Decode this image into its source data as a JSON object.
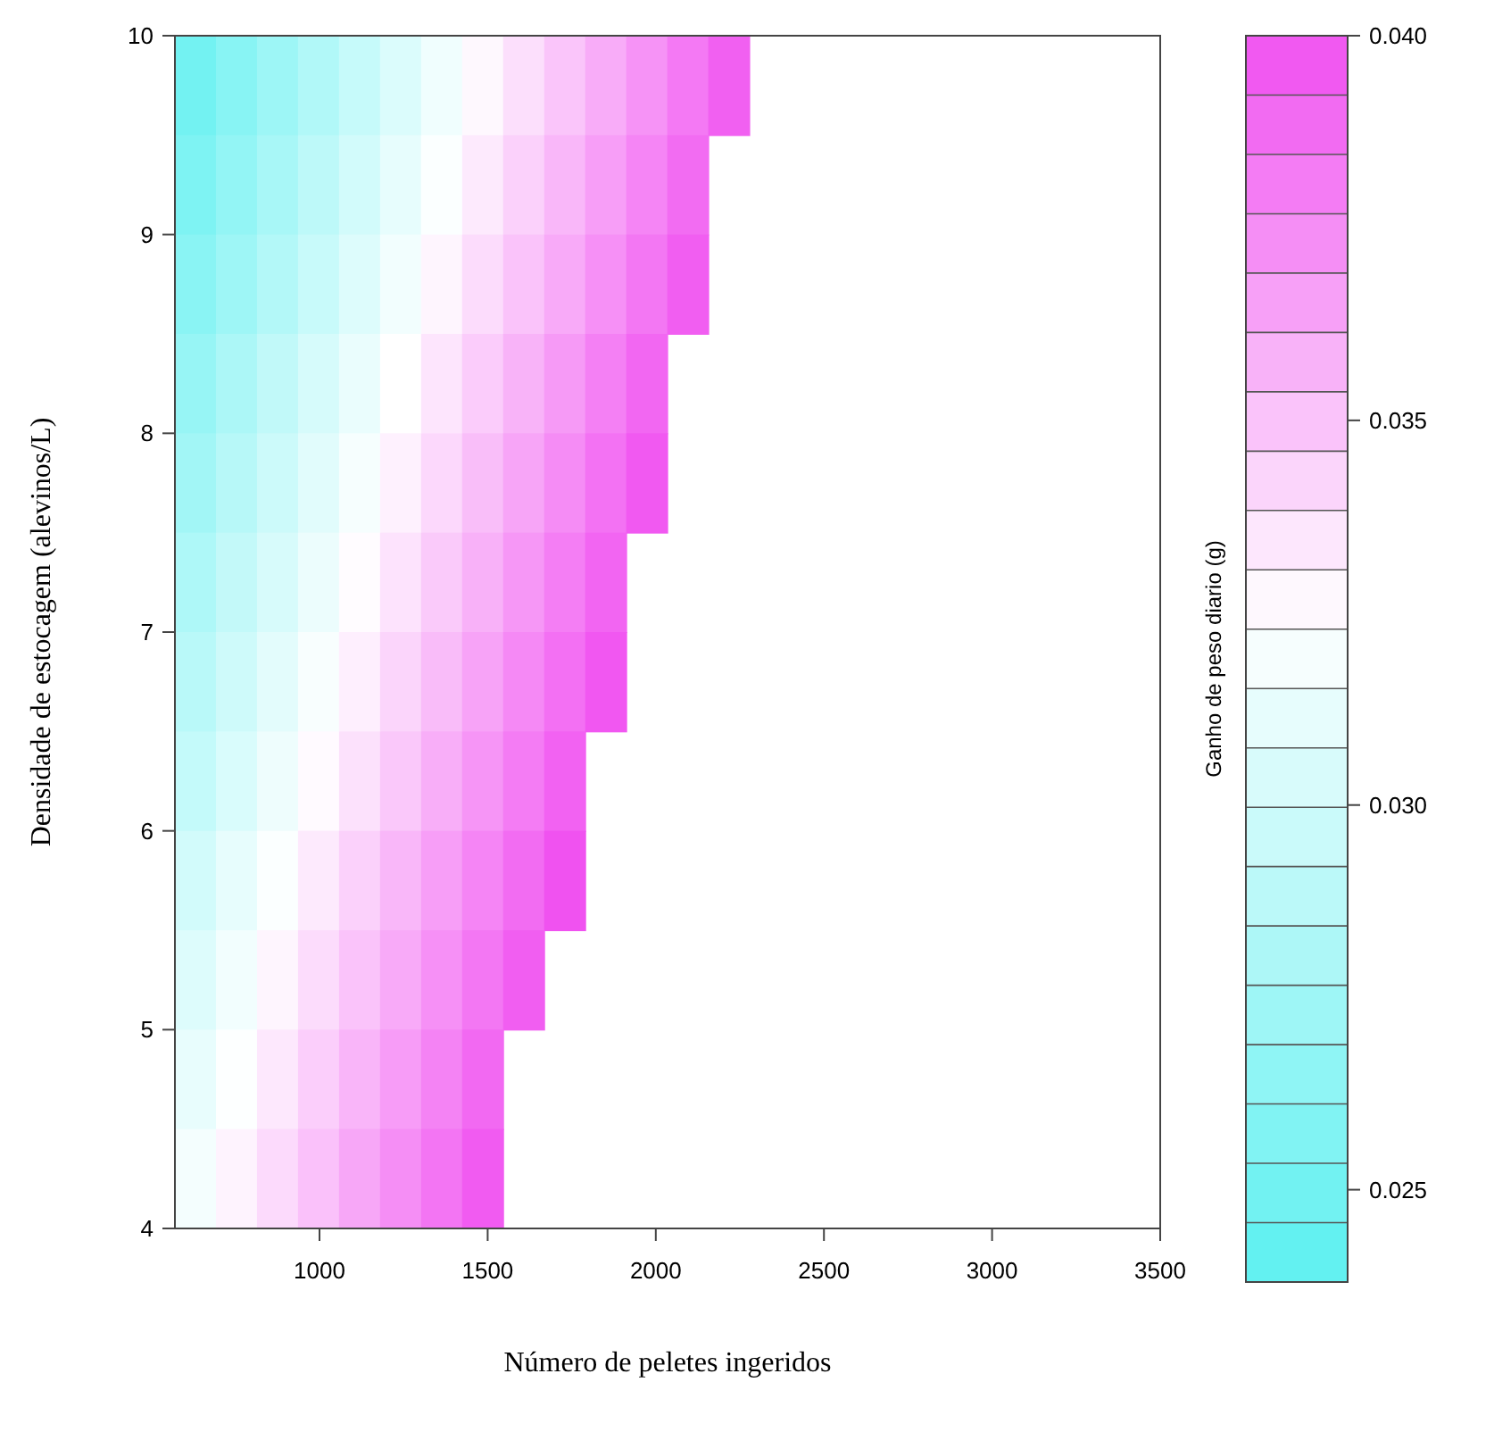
{
  "chart_data": {
    "type": "heatmap",
    "xlabel": "Número de peletes ingeridos",
    "ylabel": "Densidade de estocagem (alevinos/L)",
    "clabel": "Ganho de peso diario (g)",
    "x": [
      631,
      753,
      875,
      997,
      1119,
      1241,
      1363,
      1485,
      1607,
      1729,
      1851,
      1973,
      2095,
      2217
    ],
    "y": [
      9.75,
      9.25,
      8.75,
      8.25,
      7.75,
      7.25,
      6.75,
      6.25,
      5.75,
      5.25,
      4.75,
      4.25
    ],
    "xlim": [
      570,
      3500
    ],
    "xticks": [
      1000,
      1500,
      2000,
      2500,
      3000,
      3500
    ],
    "ylim": [
      4,
      10
    ],
    "yticks": [
      4,
      5,
      6,
      7,
      8,
      9,
      10
    ],
    "clim": [
      0.0238,
      0.04
    ],
    "cticks": [
      {
        "value": 0.025,
        "label": "0.025"
      },
      {
        "value": 0.03,
        "label": "0.030"
      },
      {
        "value": 0.035,
        "label": "0.035"
      },
      {
        "value": 0.04,
        "label": "0.040"
      }
    ],
    "cells": [
      [
        0.025,
        0.0261,
        0.0272,
        0.0283,
        0.0294,
        0.0305,
        0.0316,
        0.0327,
        0.0338,
        0.0349,
        0.036,
        0.0371,
        0.0382,
        0.0393
      ],
      [
        0.0256,
        0.0267,
        0.0278,
        0.0289,
        0.03,
        0.0311,
        0.0322,
        0.0333,
        0.0344,
        0.0355,
        0.0366,
        0.0377,
        0.0388,
        null
      ],
      [
        0.0262,
        0.0273,
        0.0284,
        0.0295,
        0.0306,
        0.0317,
        0.0328,
        0.0339,
        0.035,
        0.0361,
        0.0372,
        0.0383,
        0.0394,
        null
      ],
      [
        0.0269,
        0.028,
        0.0291,
        0.0302,
        0.0313,
        0.0324,
        0.0335,
        0.0346,
        0.0357,
        0.0368,
        0.0379,
        0.039,
        null,
        null
      ],
      [
        0.0275,
        0.0286,
        0.0297,
        0.0308,
        0.0319,
        0.033,
        0.0341,
        0.0352,
        0.0363,
        0.0374,
        0.0385,
        0.0396,
        null,
        null
      ],
      [
        0.0281,
        0.0292,
        0.0303,
        0.0314,
        0.0325,
        0.0336,
        0.0347,
        0.0358,
        0.0369,
        0.038,
        0.0391,
        null,
        null,
        null
      ],
      [
        0.0287,
        0.0298,
        0.0309,
        0.032,
        0.0331,
        0.0342,
        0.0353,
        0.0364,
        0.0375,
        0.0386,
        0.0397,
        null,
        null,
        null
      ],
      [
        0.0293,
        0.0304,
        0.0315,
        0.0326,
        0.0337,
        0.0348,
        0.0359,
        0.037,
        0.0381,
        0.0392,
        null,
        null,
        null,
        null
      ],
      [
        0.03,
        0.0311,
        0.0322,
        0.0333,
        0.0344,
        0.0355,
        0.0366,
        0.0377,
        0.0388,
        0.0399,
        null,
        null,
        null,
        null
      ],
      [
        0.0306,
        0.0317,
        0.0328,
        0.0339,
        0.035,
        0.0361,
        0.0372,
        0.0383,
        0.0394,
        null,
        null,
        null,
        null,
        null
      ],
      [
        0.0312,
        0.0323,
        0.0334,
        0.0345,
        0.0356,
        0.0367,
        0.0378,
        0.0389,
        null,
        null,
        null,
        null,
        null,
        null
      ],
      [
        0.0318,
        0.0329,
        0.034,
        0.0351,
        0.0362,
        0.0373,
        0.0384,
        0.0395,
        null,
        null,
        null,
        null,
        null,
        null
      ]
    ]
  }
}
